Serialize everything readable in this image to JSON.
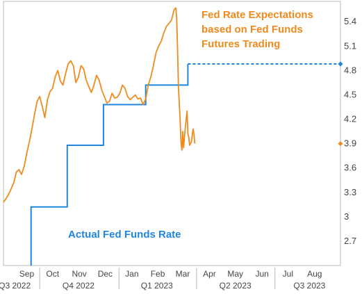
{
  "colors": {
    "expectations": "#F08A1C",
    "actual": "#1F86E0",
    "axis_text": "#444444",
    "frame": "#B9B9B9"
  },
  "annotations": {
    "expectations": [
      "Fed Rate Expectations",
      "based on Fed Funds",
      "Futures Trading"
    ],
    "actual": "Actual Fed Funds Rate"
  },
  "chart_data": {
    "type": "line",
    "title": "",
    "xlabel": "",
    "ylabel": "",
    "ylim": [
      2.4,
      5.65
    ],
    "xlim": [
      "2022-08-20",
      "2023-09-15"
    ],
    "grid": false,
    "month_labels": [
      {
        "label": "Sep",
        "date": "2022-09-16"
      },
      {
        "label": "Oct",
        "date": "2022-10-16"
      },
      {
        "label": "Nov",
        "date": "2022-11-16"
      },
      {
        "label": "Dec",
        "date": "2022-12-16"
      },
      {
        "label": "Jan",
        "date": "2023-01-16"
      },
      {
        "label": "Feb",
        "date": "2023-02-15"
      },
      {
        "label": "Mar",
        "date": "2023-03-16"
      },
      {
        "label": "Apr",
        "date": "2023-04-16"
      },
      {
        "label": "May",
        "date": "2023-05-16"
      },
      {
        "label": "Jun",
        "date": "2023-06-16"
      },
      {
        "label": "Jul",
        "date": "2023-07-16"
      },
      {
        "label": "Aug",
        "date": "2023-08-16"
      }
    ],
    "quarter_labels": [
      {
        "label": "Q3 2022",
        "date": "2022-09-02"
      },
      {
        "label": "Q4 2022",
        "date": "2022-11-15"
      },
      {
        "label": "Q1 2023",
        "date": "2023-02-14"
      },
      {
        "label": "Q2 2023",
        "date": "2023-05-16"
      },
      {
        "label": "Q3 2023",
        "date": "2023-08-10"
      }
    ],
    "quarter_boundaries": [
      "2022-10-01",
      "2023-01-01",
      "2023-04-01",
      "2023-07-01"
    ],
    "yticks": [
      {
        "label": "5.4",
        "value": 5.4
      },
      {
        "label": "5.1",
        "value": 5.1
      },
      {
        "label": "4.8",
        "value": 4.8
      },
      {
        "label": "4.5",
        "value": 4.5
      },
      {
        "label": "4.2",
        "value": 4.2
      },
      {
        "label": "3.9",
        "value": 3.9
      },
      {
        "label": "3.6",
        "value": 3.6
      },
      {
        "label": "3.3",
        "value": 3.3
      },
      {
        "label": "3",
        "value": 3.0
      },
      {
        "label": "2.7",
        "value": 2.7
      }
    ],
    "current_values": {
      "expectations": 3.9,
      "actual": 4.88
    },
    "series": [
      {
        "name": "Fed Rate Expectations based on Fed Funds Futures Trading",
        "points": [
          [
            "2022-08-20",
            3.18
          ],
          [
            "2022-08-24",
            3.24
          ],
          [
            "2022-08-28",
            3.32
          ],
          [
            "2022-09-01",
            3.42
          ],
          [
            "2022-09-04",
            3.55
          ],
          [
            "2022-09-07",
            3.58
          ],
          [
            "2022-09-10",
            3.52
          ],
          [
            "2022-09-13",
            3.62
          ],
          [
            "2022-09-16",
            3.78
          ],
          [
            "2022-09-19",
            3.92
          ],
          [
            "2022-09-22",
            4.08
          ],
          [
            "2022-09-25",
            4.26
          ],
          [
            "2022-09-28",
            4.42
          ],
          [
            "2022-10-01",
            4.48
          ],
          [
            "2022-10-04",
            4.36
          ],
          [
            "2022-10-07",
            4.22
          ],
          [
            "2022-10-10",
            4.44
          ],
          [
            "2022-10-13",
            4.54
          ],
          [
            "2022-10-16",
            4.58
          ],
          [
            "2022-10-19",
            4.72
          ],
          [
            "2022-10-22",
            4.8
          ],
          [
            "2022-10-25",
            4.67
          ],
          [
            "2022-10-28",
            4.62
          ],
          [
            "2022-10-31",
            4.76
          ],
          [
            "2022-11-03",
            4.88
          ],
          [
            "2022-11-06",
            4.92
          ],
          [
            "2022-11-09",
            4.86
          ],
          [
            "2022-11-12",
            4.65
          ],
          [
            "2022-11-15",
            4.72
          ],
          [
            "2022-11-18",
            4.86
          ],
          [
            "2022-11-21",
            4.82
          ],
          [
            "2022-11-24",
            4.68
          ],
          [
            "2022-11-27",
            4.6
          ],
          [
            "2022-11-30",
            4.53
          ],
          [
            "2022-12-03",
            4.62
          ],
          [
            "2022-12-06",
            4.74
          ],
          [
            "2022-12-09",
            4.68
          ],
          [
            "2022-12-12",
            4.56
          ],
          [
            "2022-12-15",
            4.48
          ],
          [
            "2022-12-18",
            4.4
          ],
          [
            "2022-12-21",
            4.42
          ],
          [
            "2022-12-24",
            4.52
          ],
          [
            "2022-12-27",
            4.46
          ],
          [
            "2022-12-30",
            4.47
          ],
          [
            "2023-01-02",
            4.52
          ],
          [
            "2023-01-05",
            4.62
          ],
          [
            "2023-01-08",
            4.58
          ],
          [
            "2023-01-11",
            4.48
          ],
          [
            "2023-01-14",
            4.44
          ],
          [
            "2023-01-17",
            4.47
          ],
          [
            "2023-01-20",
            4.5
          ],
          [
            "2023-01-23",
            4.45
          ],
          [
            "2023-01-26",
            4.46
          ],
          [
            "2023-01-29",
            4.38
          ],
          [
            "2023-02-01",
            4.45
          ],
          [
            "2023-02-04",
            4.62
          ],
          [
            "2023-02-07",
            4.72
          ],
          [
            "2023-02-10",
            4.86
          ],
          [
            "2023-02-13",
            5.02
          ],
          [
            "2023-02-16",
            5.1
          ],
          [
            "2023-02-19",
            5.16
          ],
          [
            "2023-02-22",
            5.26
          ],
          [
            "2023-02-25",
            5.34
          ],
          [
            "2023-02-28",
            5.38
          ],
          [
            "2023-03-03",
            5.42
          ],
          [
            "2023-03-06",
            5.55
          ],
          [
            "2023-03-08",
            5.57
          ],
          [
            "2023-03-09",
            5.44
          ],
          [
            "2023-03-10",
            5.05
          ],
          [
            "2023-03-11",
            4.6
          ],
          [
            "2023-03-13",
            4.18
          ],
          [
            "2023-03-14",
            3.92
          ],
          [
            "2023-03-15",
            3.82
          ],
          [
            "2023-03-16",
            4.05
          ],
          [
            "2023-03-17",
            3.85
          ],
          [
            "2023-03-19",
            4.1
          ],
          [
            "2023-03-20",
            4.2
          ],
          [
            "2023-03-21",
            4.3
          ],
          [
            "2023-03-22",
            4.02
          ],
          [
            "2023-03-23",
            3.98
          ],
          [
            "2023-03-24",
            3.88
          ],
          [
            "2023-03-26",
            3.92
          ],
          [
            "2023-03-28",
            4.08
          ],
          [
            "2023-03-29",
            4.02
          ],
          [
            "2023-03-30",
            3.9
          ]
        ]
      },
      {
        "name": "Actual Fed Funds Rate",
        "steps": [
          [
            "2022-09-21",
            2.4
          ],
          [
            "2022-09-21",
            3.12
          ],
          [
            "2022-11-02",
            3.12
          ],
          [
            "2022-11-02",
            3.88
          ],
          [
            "2022-12-14",
            3.88
          ],
          [
            "2022-12-14",
            4.38
          ],
          [
            "2023-02-01",
            4.38
          ],
          [
            "2023-02-01",
            4.62
          ],
          [
            "2023-03-22",
            4.62
          ],
          [
            "2023-03-22",
            4.88
          ]
        ],
        "projected": [
          [
            "2023-03-22",
            4.88
          ],
          [
            "2023-09-14",
            4.88
          ]
        ]
      }
    ]
  }
}
